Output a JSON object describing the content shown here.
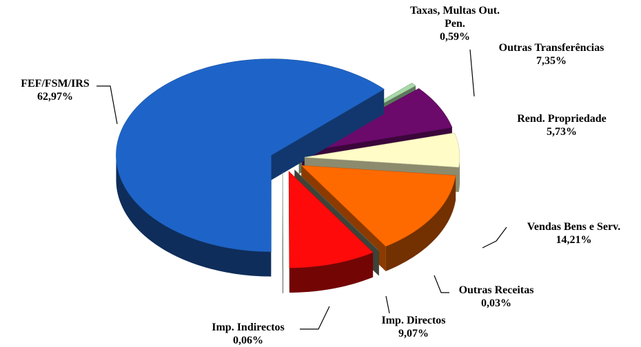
{
  "chart_data": {
    "type": "pie",
    "categories": [
      "Taxas, Multas Out. Pen.",
      "Outras Transferências",
      "Rend. Propriedade",
      "Vendas Bens e Serv.",
      "Outras Receitas",
      "Imp. Directos",
      "Imp. Indirectos",
      "FEF/FSM/IRS"
    ],
    "values": [
      0.59,
      7.35,
      5.73,
      14.21,
      0.03,
      9.07,
      0.06,
      62.97
    ],
    "value_labels": [
      "0,59%",
      "7,35%",
      "5,73%",
      "14,21%",
      "0,03%",
      "9,07%",
      "0,06%",
      "62,97%"
    ],
    "colors": [
      "#a9d9a9",
      "#6b0a6b",
      "#fffcc8",
      "#ff6a00",
      "#6f7a66",
      "#ff0a0a",
      "#7fa07f",
      "#1e64c8"
    ]
  }
}
